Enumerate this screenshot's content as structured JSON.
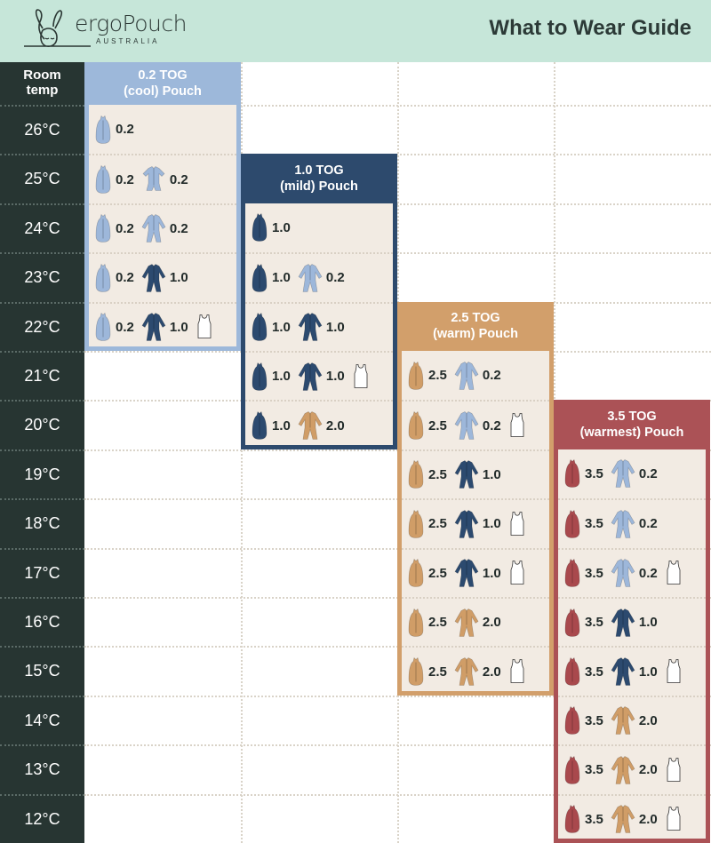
{
  "header": {
    "brand": "ergoPouch",
    "brand_sub": "AUSTRALIA",
    "title": "What to Wear Guide"
  },
  "temp_column": {
    "heading_line1": "Room",
    "heading_line2": "temp",
    "temps": [
      "26°C",
      "25°C",
      "24°C",
      "23°C",
      "22°C",
      "21°C",
      "20°C",
      "19°C",
      "18°C",
      "17°C",
      "16°C",
      "15°C",
      "14°C",
      "13°C",
      "12°C"
    ]
  },
  "colors": {
    "0.2": "#9db7da",
    "1.0": "#2c4a6f",
    "2.0": "#d09d67",
    "2.5": "#d09d67",
    "3.5": "#a9494d",
    "singlet": "#ffffff"
  },
  "boxes": [
    {
      "line1": "0.2 TOG",
      "line2": "(cool) Pouch",
      "color": "#9db8da",
      "rows": [
        [
          {
            "type": "pouch",
            "tog": "0.2"
          }
        ],
        [
          {
            "type": "pouch",
            "tog": "0.2"
          },
          {
            "type": "romper",
            "tog": "0.2"
          }
        ],
        [
          {
            "type": "pouch",
            "tog": "0.2"
          },
          {
            "type": "suit",
            "tog": "0.2"
          }
        ],
        [
          {
            "type": "pouch",
            "tog": "0.2"
          },
          {
            "type": "suit",
            "tog": "1.0"
          }
        ],
        [
          {
            "type": "pouch",
            "tog": "0.2"
          },
          {
            "type": "suit",
            "tog": "1.0"
          },
          {
            "type": "singlet"
          }
        ]
      ]
    },
    {
      "line1": "1.0 TOG",
      "line2": "(mild) Pouch",
      "color": "#2d4a6d",
      "rows": [
        [
          {
            "type": "pouch",
            "tog": "1.0"
          }
        ],
        [
          {
            "type": "pouch",
            "tog": "1.0"
          },
          {
            "type": "suit",
            "tog": "0.2"
          }
        ],
        [
          {
            "type": "pouch",
            "tog": "1.0"
          },
          {
            "type": "suit",
            "tog": "1.0"
          }
        ],
        [
          {
            "type": "pouch",
            "tog": "1.0"
          },
          {
            "type": "suit",
            "tog": "1.0"
          },
          {
            "type": "singlet"
          }
        ],
        [
          {
            "type": "pouch",
            "tog": "1.0"
          },
          {
            "type": "suit",
            "tog": "2.0"
          }
        ]
      ]
    },
    {
      "line1": "2.5 TOG",
      "line2": "(warm) Pouch",
      "color": "#d29f6b",
      "rows": [
        [
          {
            "type": "pouch",
            "tog": "2.5"
          },
          {
            "type": "suit",
            "tog": "0.2"
          }
        ],
        [
          {
            "type": "pouch",
            "tog": "2.5"
          },
          {
            "type": "suit",
            "tog": "0.2"
          },
          {
            "type": "singlet"
          }
        ],
        [
          {
            "type": "pouch",
            "tog": "2.5"
          },
          {
            "type": "suit",
            "tog": "1.0"
          }
        ],
        [
          {
            "type": "pouch",
            "tog": "2.5"
          },
          {
            "type": "suit",
            "tog": "1.0"
          },
          {
            "type": "singlet"
          }
        ],
        [
          {
            "type": "pouch",
            "tog": "2.5"
          },
          {
            "type": "suit",
            "tog": "1.0"
          },
          {
            "type": "singlet"
          }
        ],
        [
          {
            "type": "pouch",
            "tog": "2.5"
          },
          {
            "type": "suit",
            "tog": "2.0"
          }
        ],
        [
          {
            "type": "pouch",
            "tog": "2.5"
          },
          {
            "type": "suit",
            "tog": "2.0"
          },
          {
            "type": "singlet"
          }
        ]
      ]
    },
    {
      "line1": "3.5 TOG",
      "line2": "(warmest) Pouch",
      "color": "#ab5256",
      "rows": [
        [
          {
            "type": "pouch",
            "tog": "3.5"
          },
          {
            "type": "suit",
            "tog": "0.2"
          }
        ],
        [
          {
            "type": "pouch",
            "tog": "3.5"
          },
          {
            "type": "suit",
            "tog": "0.2"
          }
        ],
        [
          {
            "type": "pouch",
            "tog": "3.5"
          },
          {
            "type": "suit",
            "tog": "0.2"
          },
          {
            "type": "singlet"
          }
        ],
        [
          {
            "type": "pouch",
            "tog": "3.5"
          },
          {
            "type": "suit",
            "tog": "1.0"
          }
        ],
        [
          {
            "type": "pouch",
            "tog": "3.5"
          },
          {
            "type": "suit",
            "tog": "1.0"
          },
          {
            "type": "singlet"
          }
        ],
        [
          {
            "type": "pouch",
            "tog": "3.5"
          },
          {
            "type": "suit",
            "tog": "2.0"
          }
        ],
        [
          {
            "type": "pouch",
            "tog": "3.5"
          },
          {
            "type": "suit",
            "tog": "2.0"
          },
          {
            "type": "singlet"
          }
        ],
        [
          {
            "type": "pouch",
            "tog": "3.5"
          },
          {
            "type": "suit",
            "tog": "2.0"
          },
          {
            "type": "singlet"
          }
        ]
      ]
    }
  ]
}
